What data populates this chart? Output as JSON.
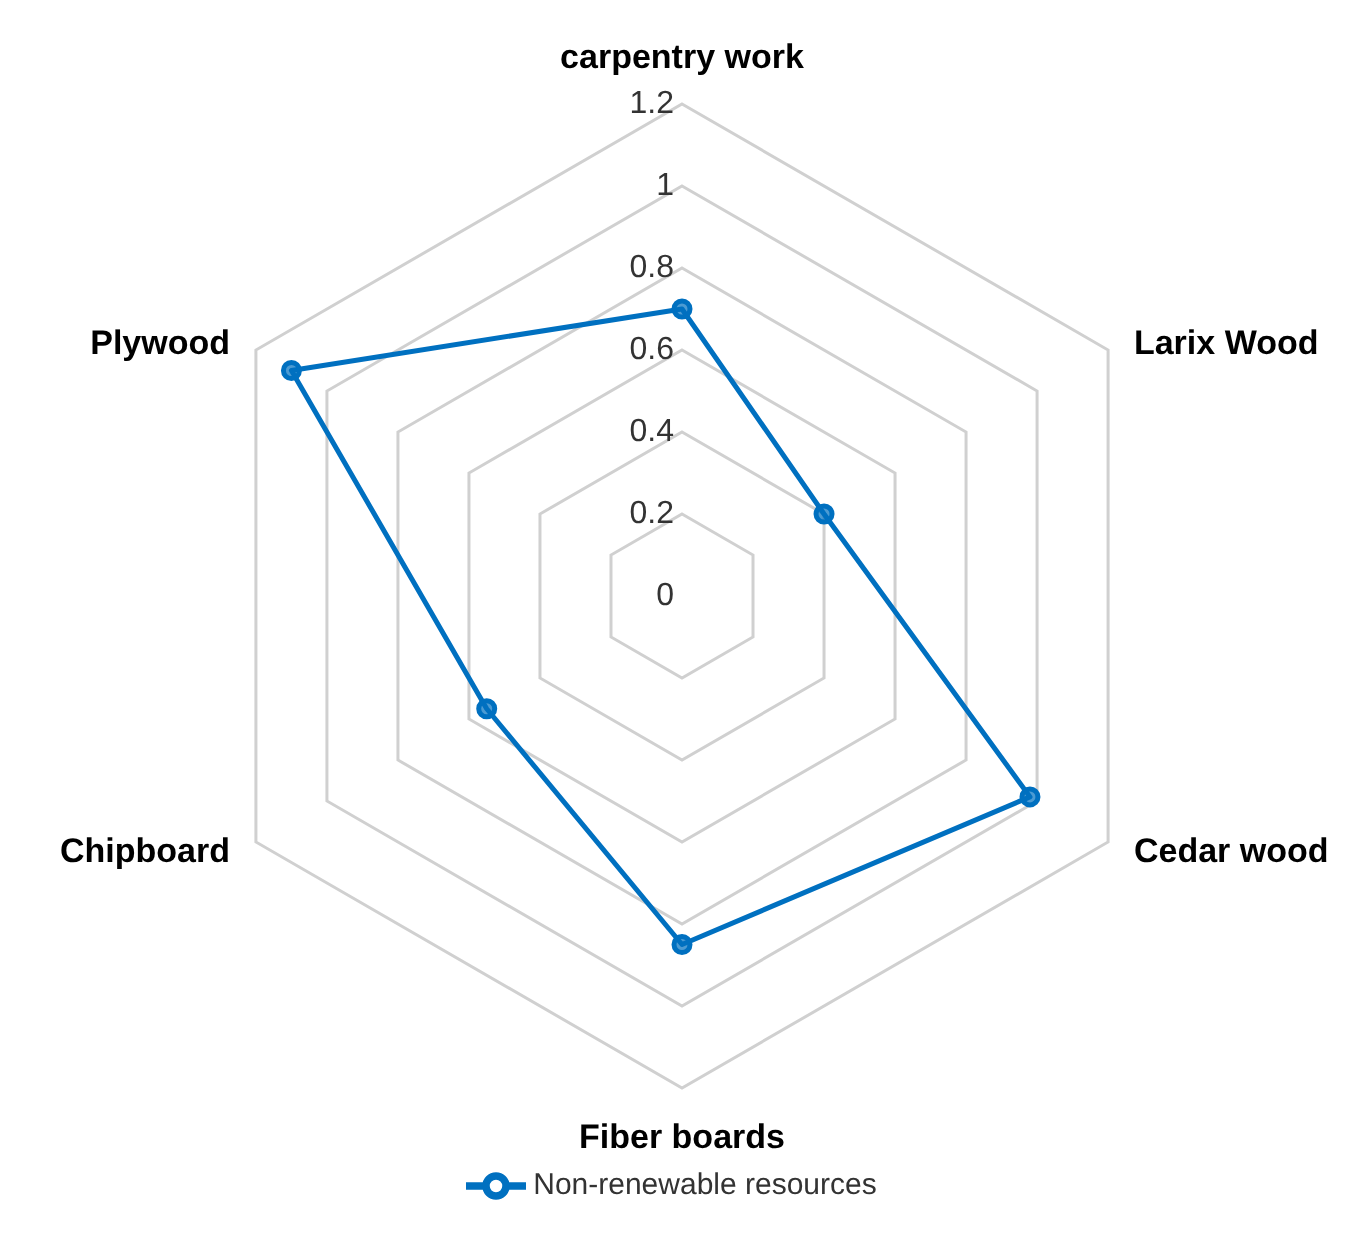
{
  "chart_data": {
    "type": "radar",
    "categories": [
      "carpentry work",
      "Larix Wood",
      "Cedar wood",
      "Fiber boards",
      "Chipboard",
      "Plywood"
    ],
    "series": [
      {
        "name": "Non-renewable resources",
        "color": "#0070c0",
        "values": [
          0.7,
          0.4,
          0.98,
          0.85,
          0.55,
          1.1
        ]
      }
    ],
    "ylim": [
      0,
      1.2
    ],
    "yticks": [
      0,
      0.2,
      0.4,
      0.6,
      0.8,
      1,
      1.2
    ],
    "grid": true,
    "legend": "bottom",
    "marker": "circle",
    "line_style": "solid"
  }
}
